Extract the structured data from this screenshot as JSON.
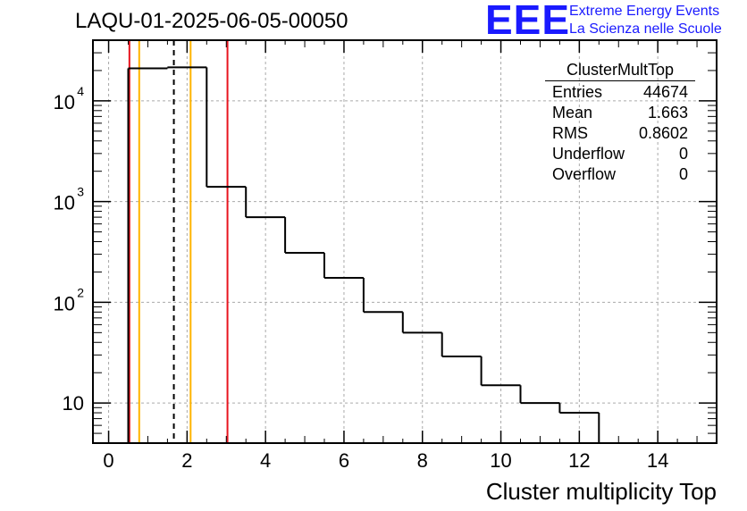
{
  "title": "LAQU-01-2025-06-05-00050",
  "logo": {
    "mark": "EEE",
    "line1": "Extreme Energy Events",
    "line2": "La Scienza nelle Scuole"
  },
  "colors": {
    "red": "#e8141e",
    "orange": "#ffb400",
    "black": "#000000",
    "grid": "#aaaaaa",
    "logo_blue": "#1a1aff"
  },
  "stats": {
    "title": "ClusterMultTop",
    "rows": [
      {
        "label": "Entries",
        "value": "44674"
      },
      {
        "label": "Mean",
        "value": "1.663"
      },
      {
        "label": "RMS",
        "value": "0.8602"
      },
      {
        "label": "Underflow",
        "value": "0"
      },
      {
        "label": "Overflow",
        "value": "0"
      }
    ]
  },
  "chart_data": {
    "type": "bar",
    "histogram": "step",
    "title": "LAQU-01-2025-06-05-00050",
    "xlabel": "Cluster multiplicity Top",
    "ylabel": "",
    "xlim": [
      -0.4,
      15.5
    ],
    "ylim": [
      4,
      40000
    ],
    "yscale": "log",
    "grid": true,
    "bins": [
      {
        "x0": 0.5,
        "x1": 1.5,
        "value": 21000
      },
      {
        "x0": 1.5,
        "x1": 2.5,
        "value": 21500
      },
      {
        "x0": 2.5,
        "x1": 3.5,
        "value": 1400
      },
      {
        "x0": 3.5,
        "x1": 4.5,
        "value": 700
      },
      {
        "x0": 4.5,
        "x1": 5.5,
        "value": 310
      },
      {
        "x0": 5.5,
        "x1": 6.5,
        "value": 175
      },
      {
        "x0": 6.5,
        "x1": 7.5,
        "value": 80
      },
      {
        "x0": 7.5,
        "x1": 8.5,
        "value": 50
      },
      {
        "x0": 8.5,
        "x1": 9.5,
        "value": 29
      },
      {
        "x0": 9.5,
        "x1": 10.5,
        "value": 15
      },
      {
        "x0": 10.5,
        "x1": 11.5,
        "value": 10
      },
      {
        "x0": 11.5,
        "x1": 12.5,
        "value": 8
      }
    ],
    "x_ticks": [
      {
        "v": 0,
        "label": "0"
      },
      {
        "v": 2,
        "label": "2"
      },
      {
        "v": 4,
        "label": "4"
      },
      {
        "v": 6,
        "label": "6"
      },
      {
        "v": 8,
        "label": "8"
      },
      {
        "v": 10,
        "label": "10"
      },
      {
        "v": 12,
        "label": "12"
      },
      {
        "v": 14,
        "label": "14"
      }
    ],
    "y_ticks": [
      {
        "v": 10,
        "base": "10",
        "exp": ""
      },
      {
        "v": 100,
        "base": "10",
        "exp": "2"
      },
      {
        "v": 1000,
        "base": "10",
        "exp": "3"
      },
      {
        "v": 10000,
        "base": "10",
        "exp": "4"
      }
    ],
    "vlines": [
      {
        "x": 0.53,
        "color": "red",
        "style": "solid"
      },
      {
        "x": 0.78,
        "color": "orange",
        "style": "solid"
      },
      {
        "x": 1.663,
        "color": "black",
        "style": "dashed"
      },
      {
        "x": 2.09,
        "color": "orange",
        "style": "solid"
      },
      {
        "x": 3.03,
        "color": "red",
        "style": "solid"
      }
    ]
  }
}
